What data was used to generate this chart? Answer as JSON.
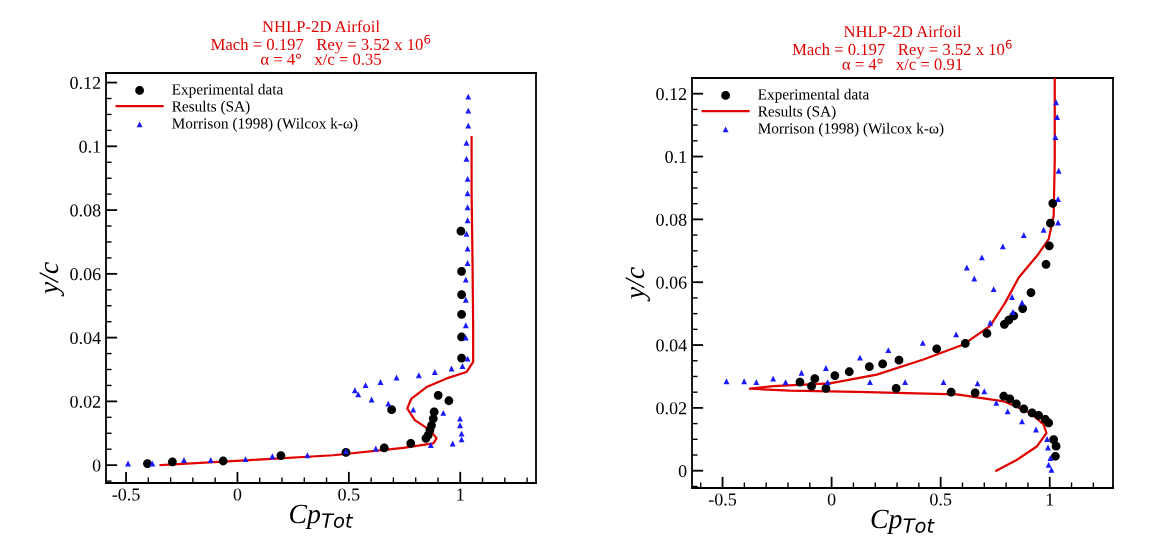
{
  "chart_data": [
    {
      "type": "scatter",
      "title": "NHLP-2D Airfoil\nMach = 0.197   Rey = 3.52 x 10$^{6}$\nα = 4°   x/c = 0.35",
      "xlabel": "Cp$_{Tot}$",
      "ylabel": "y/c",
      "xlim": [
        -0.59,
        1.34
      ],
      "ylim": [
        -0.0056,
        0.123
      ],
      "xticks": [
        -0.5,
        0,
        0.5,
        1
      ],
      "yticks": [
        0,
        0.02,
        0.04,
        0.06,
        0.08,
        0.1,
        0.12
      ],
      "legend": "top left",
      "grid": false,
      "series": [
        {
          "name": "Experimental data",
          "type": "scatter",
          "marker": "circle",
          "color": "#000000",
          "x": [
            -0.404,
            -0.292,
            -0.064,
            0.195,
            0.487,
            0.659,
            0.778,
            0.846,
            0.856,
            0.864,
            0.871,
            0.879,
            0.883,
            0.692,
            0.901,
            0.949,
            1.006,
            1.006,
            1.006,
            1.006,
            1.006,
            1.003
          ],
          "values": [
            0.0005,
            0.001,
            0.0013,
            0.003,
            0.004,
            0.0054,
            0.0068,
            0.0084,
            0.0094,
            0.011,
            0.0125,
            0.0146,
            0.0167,
            0.0174,
            0.0219,
            0.0202,
            0.0336,
            0.0402,
            0.0473,
            0.0535,
            0.0608,
            0.0734
          ]
        },
        {
          "name": "Results (SA)",
          "type": "line",
          "marker": "none",
          "line_style": "solid",
          "color": "#e00000",
          "x": [
            -0.345,
            0.055,
            0.43,
            0.744,
            0.879,
            0.894,
            0.864,
            0.796,
            0.762,
            0.781,
            0.849,
            0.939,
            1.028,
            1.058,
            1.058,
            1.055,
            1.051,
            1.051
          ],
          "values": [
            0,
            0.0016,
            0.0031,
            0.0054,
            0.0068,
            0.0084,
            0.011,
            0.0141,
            0.0178,
            0.0209,
            0.0245,
            0.0272,
            0.0292,
            0.0324,
            0.0433,
            0.0642,
            0.0851,
            0.1029
          ]
        },
        {
          "name": "Morrison (1998) (Wilcox k-ω)",
          "type": "scatter",
          "marker": "triangle",
          "color": "#1a1aff",
          "x": [
            -0.491,
            -0.382,
            -0.24,
            -0.12,
            0.036,
            0.157,
            0.314,
            0.487,
            0.621,
            0.868,
            0.966,
            1.006,
            1.006,
            0.999,
            0.999,
            0.924,
            0.789,
            0.677,
            0.602,
            0.542,
            0.527,
            0.575,
            0.642,
            0.714,
            0.814,
            0.886,
            0.961,
            1.01,
            1.033,
            1.025,
            1.025,
            1.025,
            1.025,
            1.033,
            1.033,
            1.028,
            1.033,
            1.033,
            1.033,
            1.033,
            1.028,
            1.028,
            1.036,
            1.036,
            1.036
          ],
          "values": [
            0.0005,
            0.0005,
            0.0016,
            0.0016,
            0.0019,
            0.0028,
            0.0031,
            0.0044,
            0.0052,
            0.0063,
            0.0068,
            0.0081,
            0.0099,
            0.0125,
            0.0146,
            0.0164,
            0.0174,
            0.0193,
            0.0206,
            0.0222,
            0.0235,
            0.0251,
            0.0261,
            0.0275,
            0.0282,
            0.0292,
            0.0303,
            0.0311,
            0.0334,
            0.04,
            0.0439,
            0.0519,
            0.0582,
            0.0634,
            0.0679,
            0.0726,
            0.0768,
            0.0809,
            0.0853,
            0.0898,
            0.0961,
            0.1011,
            0.1065,
            0.1112,
            0.1156
          ]
        }
      ]
    },
    {
      "type": "scatter",
      "title": "NHLP-2D Airfoil\nMach = 0.197   Rey = 3.52 x 10$^{6}$\nα = 4°   x/c = 0.91",
      "xlabel": "Cp$_{Tot}$",
      "ylabel": "y/c",
      "xlim": [
        -0.64,
        1.29
      ],
      "ylim": [
        -0.0055,
        0.125
      ],
      "xticks": [
        -0.5,
        0,
        0.5,
        1
      ],
      "yticks": [
        0,
        0.02,
        0.04,
        0.06,
        0.08,
        0.1,
        0.12
      ],
      "legend": "top left",
      "grid": false,
      "series": [
        {
          "name": "Experimental data",
          "type": "scatter",
          "marker": "circle",
          "color": "#000000",
          "x": [
            1.026,
            1.029,
            1.018,
            0.995,
            0.98,
            0.949,
            0.919,
            0.881,
            0.847,
            0.817,
            0.789,
            0.658,
            0.548,
            0.296,
            -0.026,
            -0.092,
            -0.145,
            -0.077,
            0.015,
            0.081,
            0.173,
            0.234,
            0.309,
            0.482,
            0.613,
            0.712,
            0.792,
            0.812,
            0.835,
            0.876,
            0.914,
            0.983,
            0.998,
            1.003,
            1.014
          ],
          "values": [
            0.0046,
            0.0078,
            0.0099,
            0.0152,
            0.0163,
            0.0176,
            0.0184,
            0.0197,
            0.0213,
            0.0229,
            0.0237,
            0.0248,
            0.025,
            0.0262,
            0.0262,
            0.0269,
            0.0282,
            0.0293,
            0.0303,
            0.0315,
            0.0331,
            0.034,
            0.0352,
            0.0388,
            0.0405,
            0.0437,
            0.0466,
            0.0479,
            0.0493,
            0.0516,
            0.0567,
            0.0657,
            0.0716,
            0.0788,
            0.0851
          ]
        },
        {
          "name": "Results (SA)",
          "type": "line",
          "marker": "none",
          "line_style": "solid",
          "color": "#e00000",
          "x": [
            0.755,
            0.85,
            0.942,
            0.985,
            0.972,
            0.911,
            0.789,
            0.574,
            0.115,
            -0.191,
            -0.375,
            -0.268,
            -0.008,
            0.207,
            0.421,
            0.605,
            0.727,
            0.796,
            0.858,
            0.942,
            0.995,
            1.018,
            1.023,
            1.023
          ],
          "values": [
            0,
            0.0035,
            0.0078,
            0.012,
            0.0147,
            0.0184,
            0.0221,
            0.0243,
            0.0251,
            0.0255,
            0.0261,
            0.0269,
            0.0278,
            0.0306,
            0.0354,
            0.0402,
            0.0461,
            0.0535,
            0.0615,
            0.0684,
            0.0737,
            0.0812,
            0.0993,
            0.125
          ]
        },
        {
          "name": "Morrison (1998) (Wilcox k-ω)",
          "type": "scatter",
          "marker": "triangle",
          "color": "#1a1aff",
          "x": [
            1.008,
            0.995,
            1.003,
            0.992,
            0.988,
            0.937,
            0.873,
            0.807,
            0.755,
            0.7,
            0.669,
            0.513,
            0.337,
            0.176,
            -0.018,
            -0.211,
            -0.345,
            -0.401,
            -0.482,
            -0.268,
            -0.138,
            -0.026,
            0.13,
            0.26,
            0.418,
            0.571,
            0.727,
            0.831,
            0.873,
            0.827,
            0.743,
            0.654,
            0.62,
            0.689,
            0.785,
            0.881,
            0.972,
            1.038,
            1.038,
            1.041,
            1.026,
            1.034,
            1.029
          ],
          "values": [
            0.0003,
            0.0019,
            0.004,
            0.0074,
            0.0101,
            0.0131,
            0.0157,
            0.0189,
            0.0216,
            0.0253,
            0.0278,
            0.0282,
            0.0282,
            0.0282,
            0.0282,
            0.0282,
            0.0282,
            0.0285,
            0.0285,
            0.0293,
            0.0312,
            0.0327,
            0.036,
            0.0384,
            0.0407,
            0.0434,
            0.0471,
            0.0505,
            0.0535,
            0.0553,
            0.0578,
            0.0612,
            0.0647,
            0.0679,
            0.0714,
            0.075,
            0.0767,
            0.079,
            0.0865,
            0.0955,
            0.1062,
            0.1126,
            0.1173
          ]
        }
      ]
    }
  ]
}
